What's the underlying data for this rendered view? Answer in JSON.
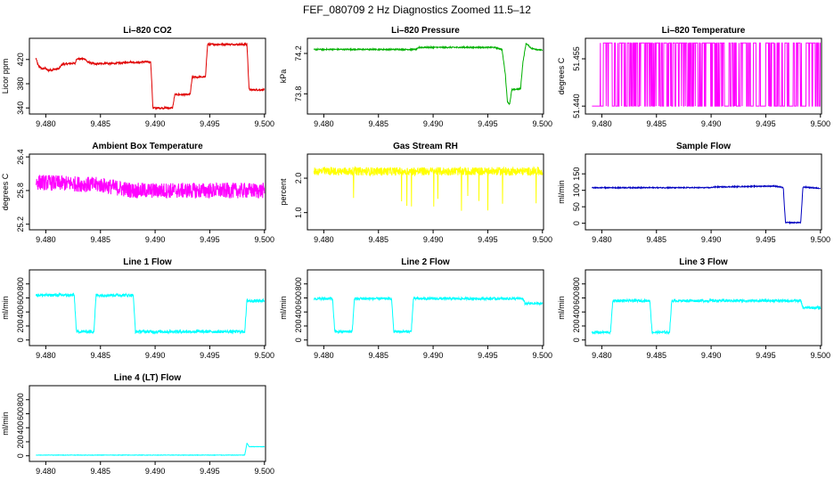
{
  "figure": {
    "title": "FEF_080709  2 Hz Diagnostics Zoomed 11.5–12"
  },
  "chart_data": [
    {
      "type": "line",
      "title": "Li–820 CO2",
      "xlabel": "",
      "ylabel": "Licor ppm",
      "color": "#e00000",
      "xlim": [
        9.4785,
        9.5001
      ],
      "ylim": [
        330,
        455
      ],
      "xticks": [
        "9.480",
        "9.485",
        "9.490",
        "9.495",
        "9.500"
      ],
      "xtick_values": [
        9.48,
        9.485,
        9.49,
        9.495,
        9.5
      ],
      "yticks": [
        "340",
        "380",
        "420"
      ],
      "ytick_values": [
        340,
        380,
        420
      ],
      "x": [
        9.4791,
        9.4793,
        9.4797,
        9.4799,
        9.4802,
        9.4812,
        9.4815,
        9.4827,
        9.4828,
        9.4836,
        9.4838,
        9.4846,
        9.4848,
        9.4856,
        9.4858,
        9.4874,
        9.4876,
        9.4886,
        9.4888,
        9.4896,
        9.4898,
        9.4916,
        9.4918,
        9.4932,
        9.4934,
        9.4946,
        9.4948,
        9.4984,
        9.4986,
        9.5
      ],
      "y": [
        422,
        410,
        404,
        406,
        402,
        405,
        412,
        414,
        421,
        421,
        416,
        412,
        413,
        414,
        413,
        415,
        416,
        415,
        416,
        416,
        340,
        340,
        362,
        362,
        391,
        391,
        445,
        445,
        370,
        370
      ],
      "noise": 1.5
    },
    {
      "type": "line",
      "title": "Li–820 Pressure",
      "xlabel": "",
      "ylabel": "kPa",
      "color": "#00b000",
      "xlim": [
        9.4785,
        9.5001
      ],
      "ylim": [
        73.6,
        74.35
      ],
      "xticks": [
        "9.480",
        "9.485",
        "9.490",
        "9.495",
        "9.500"
      ],
      "xtick_values": [
        9.48,
        9.485,
        9.49,
        9.495,
        9.5
      ],
      "yticks": [
        "73.8",
        "74.2"
      ],
      "ytick_values": [
        73.8,
        74.2
      ],
      "x": [
        9.4791,
        9.4885,
        9.4887,
        9.4956,
        9.4963,
        9.4966,
        9.4968,
        9.497,
        9.4972,
        9.498,
        9.4982,
        9.4985,
        9.499,
        9.5
      ],
      "y": [
        74.24,
        74.24,
        74.26,
        74.26,
        74.24,
        74.0,
        73.72,
        73.7,
        73.84,
        73.85,
        74.1,
        74.3,
        74.25,
        74.23
      ],
      "noise": 0.006
    },
    {
      "type": "line",
      "title": "Li–820 Temperature",
      "xlabel": "",
      "ylabel": "degrees C",
      "color": "#ff00ff",
      "xlim": [
        9.4785,
        9.5001
      ],
      "ylim": [
        51.4375,
        51.4615
      ],
      "xticks": [
        "9.480",
        "9.485",
        "9.490",
        "9.495",
        "9.500"
      ],
      "xtick_values": [
        9.48,
        9.485,
        9.49,
        9.495,
        9.5
      ],
      "yticks": [
        "51.440",
        "51.455"
      ],
      "ytick_values": [
        51.44,
        51.455
      ],
      "binary_levels": [
        51.44,
        51.46
      ]
    },
    {
      "type": "line",
      "title": "Ambient Box Temperature",
      "xlabel": "",
      "ylabel": "degrees C",
      "color": "#ff00ff",
      "xlim": [
        9.4785,
        9.5001
      ],
      "ylim": [
        25.1,
        26.45
      ],
      "xticks": [
        "9.480",
        "9.485",
        "9.490",
        "9.495",
        "9.500"
      ],
      "xtick_values": [
        9.48,
        9.485,
        9.49,
        9.495,
        9.5
      ],
      "yticks": [
        "25.2",
        "25.8",
        "26.4"
      ],
      "ytick_values": [
        25.2,
        25.8,
        26.4
      ],
      "x": [
        9.4791,
        9.485,
        9.488,
        9.5
      ],
      "y": [
        25.95,
        25.9,
        25.8,
        25.8
      ],
      "noise": 0.14
    },
    {
      "type": "line",
      "title": "Gas Stream RH",
      "xlabel": "",
      "ylabel": "percent",
      "color": "#ffff00",
      "xlim": [
        9.4785,
        9.5001
      ],
      "ylim": [
        0.5,
        2.7
      ],
      "xticks": [
        "9.480",
        "9.485",
        "9.490",
        "9.495",
        "9.500"
      ],
      "xtick_values": [
        9.48,
        9.485,
        9.49,
        9.495,
        9.5
      ],
      "yticks": [
        "1.0",
        "2.0"
      ],
      "ytick_values": [
        1.0,
        2.0
      ],
      "x": [
        9.4791,
        9.5
      ],
      "y": [
        2.2,
        2.2
      ],
      "noise": 0.12
    },
    {
      "type": "line",
      "title": "Sample Flow",
      "xlabel": "",
      "ylabel": "ml/min",
      "color": "#0000c0",
      "xlim": [
        9.4785,
        9.5001
      ],
      "ylim": [
        -20,
        210
      ],
      "xticks": [
        "9.480",
        "9.485",
        "9.490",
        "9.495",
        "9.500"
      ],
      "xtick_values": [
        9.48,
        9.485,
        9.49,
        9.495,
        9.5
      ],
      "yticks": [
        "0",
        "50",
        "100",
        "150"
      ],
      "ytick_values": [
        0,
        50,
        100,
        150
      ],
      "x": [
        9.4791,
        9.49,
        9.4902,
        9.4958,
        9.4966,
        9.4968,
        9.4982,
        9.4984,
        9.5
      ],
      "y": [
        108,
        108,
        110,
        113,
        108,
        2,
        2,
        110,
        106
      ],
      "noise": 1.5
    },
    {
      "type": "line",
      "title": "Line 1 Flow",
      "xlabel": "",
      "ylabel": "ml/min",
      "color": "#00ffff",
      "xlim": [
        9.4785,
        9.5001
      ],
      "ylim": [
        -80,
        1000
      ],
      "xticks": [
        "9.480",
        "9.485",
        "9.490",
        "9.495",
        "9.500"
      ],
      "xtick_values": [
        9.48,
        9.485,
        9.49,
        9.495,
        9.5
      ],
      "yticks": [
        "0",
        "200",
        "400",
        "600",
        "800"
      ],
      "ytick_values": [
        0,
        200,
        400,
        600,
        800
      ],
      "x": [
        9.4791,
        9.4826,
        9.4828,
        9.4844,
        9.4846,
        9.488,
        9.4882,
        9.4982,
        9.4984,
        9.5
      ],
      "y": [
        640,
        640,
        120,
        120,
        640,
        640,
        120,
        120,
        560,
        560
      ],
      "noise": 22
    },
    {
      "type": "line",
      "title": "Line 2 Flow",
      "xlabel": "",
      "ylabel": "ml/min",
      "color": "#00ffff",
      "xlim": [
        9.4785,
        9.5001
      ],
      "ylim": [
        -80,
        1000
      ],
      "xticks": [
        "9.480",
        "9.485",
        "9.490",
        "9.495",
        "9.500"
      ],
      "xtick_values": [
        9.48,
        9.485,
        9.49,
        9.495,
        9.5
      ],
      "yticks": [
        "0",
        "200",
        "400",
        "600",
        "800"
      ],
      "ytick_values": [
        0,
        200,
        400,
        600,
        800
      ],
      "x": [
        9.4791,
        9.4808,
        9.481,
        9.4826,
        9.4828,
        9.4862,
        9.4864,
        9.488,
        9.4882,
        9.4982,
        9.4984,
        9.5
      ],
      "y": [
        590,
        590,
        120,
        120,
        590,
        590,
        120,
        120,
        590,
        590,
        520,
        520
      ],
      "noise": 18
    },
    {
      "type": "line",
      "title": "Line 3 Flow",
      "xlabel": "",
      "ylabel": "ml/min",
      "color": "#00ffff",
      "xlim": [
        9.4785,
        9.5001
      ],
      "ylim": [
        -80,
        1000
      ],
      "xticks": [
        "9.480",
        "9.485",
        "9.490",
        "9.495",
        "9.500"
      ],
      "xtick_values": [
        9.48,
        9.485,
        9.49,
        9.495,
        9.5
      ],
      "yticks": [
        "0",
        "200",
        "400",
        "600",
        "800"
      ],
      "ytick_values": [
        0,
        200,
        400,
        600,
        800
      ],
      "x": [
        9.4791,
        9.4808,
        9.481,
        9.4844,
        9.4846,
        9.4862,
        9.4864,
        9.4982,
        9.4984,
        9.5
      ],
      "y": [
        110,
        110,
        560,
        560,
        110,
        110,
        560,
        560,
        460,
        460
      ],
      "noise": 18
    },
    {
      "type": "line",
      "title": "Line 4 (LT) Flow",
      "xlabel": "",
      "ylabel": "ml/min",
      "color": "#00ffff",
      "xlim": [
        9.4785,
        9.5001
      ],
      "ylim": [
        -80,
        1000
      ],
      "xticks": [
        "9.480",
        "9.485",
        "9.490",
        "9.495",
        "9.500"
      ],
      "xtick_values": [
        9.48,
        9.485,
        9.49,
        9.495,
        9.5
      ],
      "yticks": [
        "0",
        "200",
        "400",
        "600",
        "800"
      ],
      "ytick_values": [
        0,
        200,
        400,
        600,
        800
      ],
      "x": [
        9.4791,
        9.4982,
        9.4984,
        9.4986,
        9.5
      ],
      "y": [
        10,
        10,
        180,
        130,
        130
      ],
      "noise": 3
    }
  ]
}
